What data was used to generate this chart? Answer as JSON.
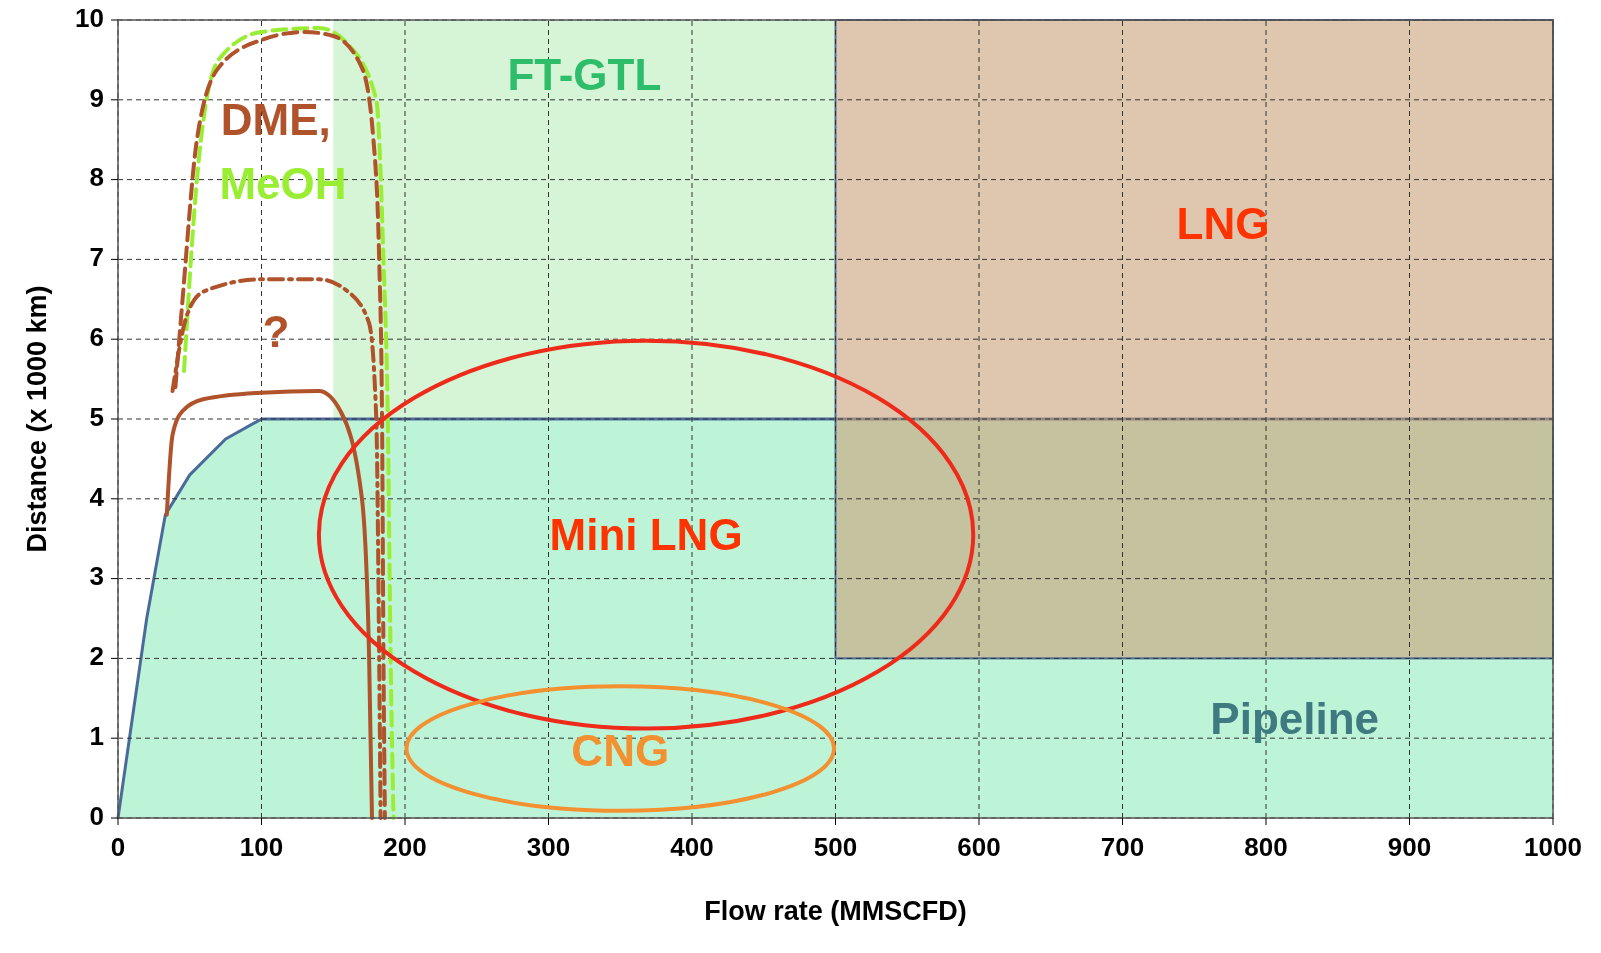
{
  "chart_data": {
    "type": "line",
    "xlabel": "Flow rate (MMSCFD)",
    "ylabel": "Distance (x 1000 km)",
    "xlim": [
      0,
      1000
    ],
    "ylim": [
      0,
      10
    ],
    "xticks": [
      0,
      100,
      200,
      300,
      400,
      500,
      600,
      700,
      800,
      900,
      1000
    ],
    "yticks": [
      0,
      1,
      2,
      3,
      4,
      5,
      6,
      7,
      8,
      9,
      10
    ],
    "grid": true,
    "bands": [
      {
        "axis": "x",
        "from": 150,
        "to": 500,
        "label": "FT-GTL",
        "color": "#d6f5d6"
      }
    ],
    "series": [
      {
        "type": "area",
        "color": "#bdf4d8",
        "x": [
          0,
          20,
          33,
          50,
          75,
          100,
          1000
        ],
        "values": [
          0,
          2.5,
          3.8,
          4.3,
          4.75,
          5,
          5
        ]
      },
      {
        "color": "#99ee33",
        "line_style": "dashed",
        "x": [
          46,
          55,
          70,
          100,
          140,
          160,
          180,
          185,
          188,
          190,
          192
        ],
        "values": [
          5.6,
          8,
          9.5,
          9.85,
          9.9,
          9.7,
          9,
          7,
          5,
          2,
          0
        ]
      },
      {
        "color": "#b0522a",
        "line_style": "dashed",
        "x": [
          40,
          45,
          55,
          70,
          100,
          130,
          150,
          170,
          178,
          182,
          184,
          185,
          186
        ],
        "values": [
          5.4,
          6.5,
          8.5,
          9.4,
          9.75,
          9.85,
          9.8,
          9.4,
          8.5,
          7,
          5,
          2,
          0
        ]
      },
      {
        "color": "#b0522a",
        "line_style": "dotted",
        "x": [
          38,
          48,
          60,
          100,
          140,
          160,
          175,
          180,
          182,
          183
        ],
        "values": [
          5.35,
          6.3,
          6.6,
          6.75,
          6.75,
          6.6,
          6.2,
          5,
          2,
          0
        ]
      },
      {
        "color": "#b0522a",
        "line_style": "solid",
        "x": [
          34,
          38,
          45,
          60,
          100,
          140,
          155,
          170,
          175,
          177
        ],
        "values": [
          3.8,
          4.8,
          5.1,
          5.25,
          5.33,
          5.35,
          5.1,
          4,
          2,
          0
        ]
      }
    ],
    "annotations": [
      "DME,",
      "MeOH",
      "?",
      "LNG",
      "Mini LNG",
      "CNG",
      "Pipeline"
    ]
  }
}
